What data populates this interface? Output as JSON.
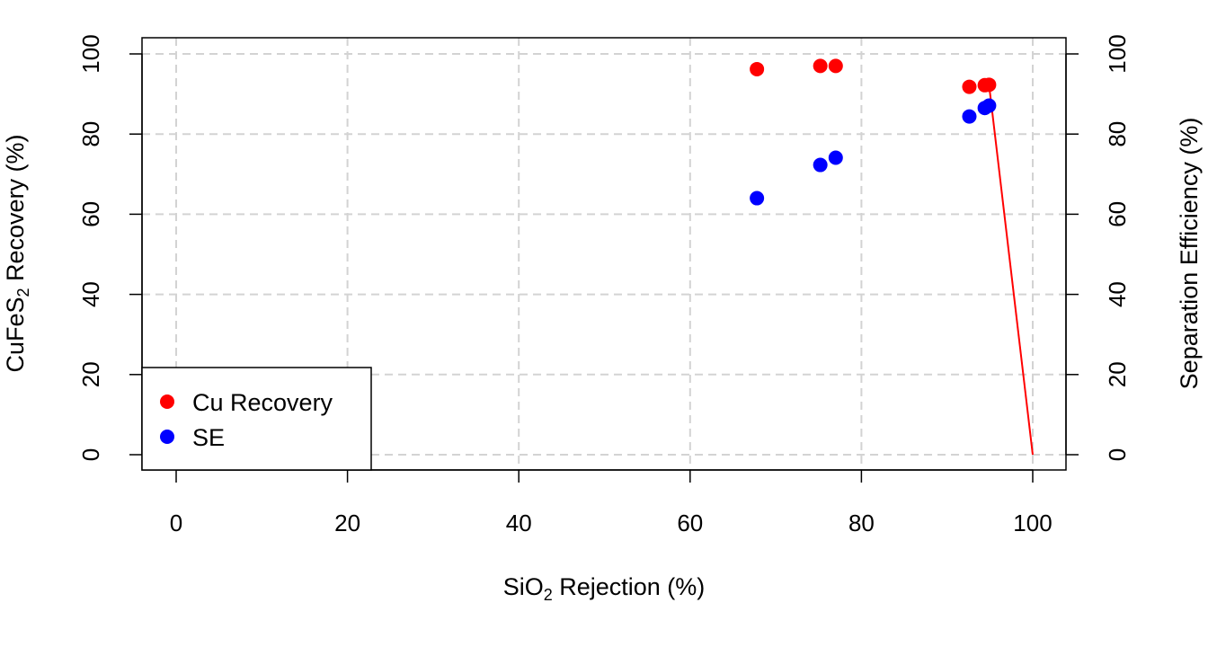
{
  "chart_data": {
    "type": "scatter",
    "xlabel": {
      "pre": "SiO",
      "sub": "2",
      "post": " Rejection (%)"
    },
    "ylabel_left": {
      "pre": "CuFeS",
      "sub": "2",
      "post": " Recovery (%)"
    },
    "ylabel_right": "Separation Efficiency (%)",
    "xlim": [
      0,
      100
    ],
    "ylim": [
      0,
      100
    ],
    "x_ticks": [
      "0",
      "20",
      "40",
      "60",
      "80",
      "100"
    ],
    "y_ticks": [
      "0",
      "20",
      "40",
      "60",
      "80",
      "100"
    ],
    "grid": true,
    "legend_position": "bottom-left",
    "series": [
      {
        "name": "Cu Recovery",
        "color": "#ff0000",
        "points": [
          [
            67.8,
            96.2
          ],
          [
            75.2,
            97.0
          ],
          [
            77.0,
            97.0
          ],
          [
            92.6,
            91.8
          ],
          [
            94.4,
            92.2
          ],
          [
            94.9,
            92.3
          ]
        ]
      },
      {
        "name": "SE",
        "color": "#0000ff",
        "points": [
          [
            67.8,
            64.0
          ],
          [
            75.2,
            72.3
          ],
          [
            77.0,
            74.1
          ],
          [
            92.6,
            84.4
          ],
          [
            94.4,
            86.5
          ],
          [
            94.9,
            87.1
          ]
        ]
      }
    ],
    "lines": [
      {
        "color": "#ff0000",
        "points": [
          [
            94.9,
            92.3
          ],
          [
            100,
            0
          ]
        ]
      }
    ]
  }
}
